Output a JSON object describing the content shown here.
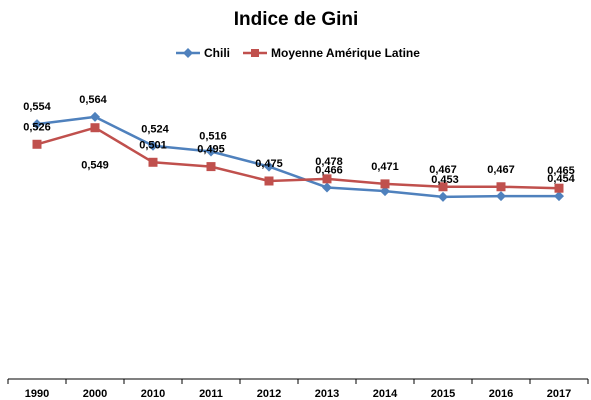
{
  "chart_data": {
    "type": "line",
    "title": "Indice de Gini",
    "categories": [
      "1990",
      "2000",
      "2010",
      "2011",
      "2012",
      "2013",
      "2014",
      "2015",
      "2016",
      "2017"
    ],
    "series": [
      {
        "name": "Chili",
        "color": "#4F81BD",
        "marker": "diamond",
        "values": [
          0.554,
          0.564,
          0.524,
          0.516,
          0.495,
          0.466,
          0.461,
          0.453,
          0.454,
          0.454
        ],
        "labels": [
          "0,554",
          "0,564",
          "0,524",
          "0,516",
          "",
          "0,466",
          "",
          "0,453",
          "",
          "0,454"
        ]
      },
      {
        "name": "Moyenne Amérique Latine",
        "color": "#C0504D",
        "marker": "square",
        "values": [
          0.526,
          0.549,
          0.501,
          0.495,
          0.475,
          0.478,
          0.471,
          0.467,
          0.467,
          0.465
        ],
        "labels": [
          "0,526",
          "0,549",
          "0,501",
          "0,495",
          "0,475",
          "0,478",
          "0,471",
          "0,467",
          "0,467",
          "0,465"
        ]
      }
    ],
    "legend_position": "top",
    "grid": false,
    "ylim": [
      0.2,
      0.6
    ]
  }
}
